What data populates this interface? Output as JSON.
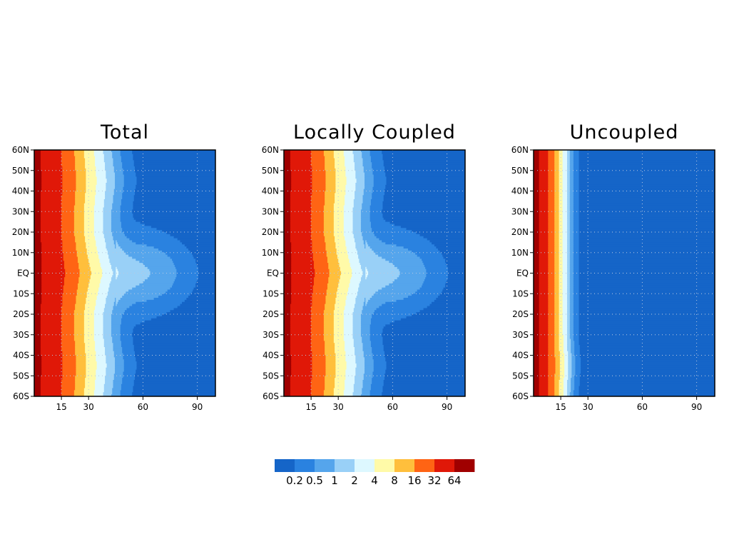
{
  "chart_data": {
    "type": "heatmap",
    "panels": [
      {
        "title": "Total",
        "profile": [
          80,
          52,
          40,
          27,
          16,
          8.4,
          4.5,
          2.3,
          1.1,
          0.45,
          0.17,
          0.14,
          0.12,
          0.1,
          0.08,
          0.06
        ]
      },
      {
        "title": "Locally Coupled",
        "profile": [
          80,
          52,
          40,
          27,
          16,
          8.4,
          4.5,
          2.3,
          1.1,
          0.45,
          0.17,
          0.14,
          0.12,
          0.1,
          0.08,
          0.06
        ]
      },
      {
        "title": "Uncoupled",
        "profile": [
          90,
          38,
          14,
          3.2,
          0.5,
          0.1,
          0.08,
          0.06,
          0.05,
          0.04,
          0.03,
          0.03,
          0.02,
          0.02,
          0.01,
          0.01
        ]
      }
    ],
    "profile_x": [
      0,
      7,
      12,
      17,
      22,
      27,
      32,
      37,
      42,
      48,
      55,
      62,
      70,
      80,
      90,
      100
    ],
    "width_modulation": {
      "Total": [
        [
          -60,
          1.0
        ],
        [
          -45,
          1.05
        ],
        [
          -30,
          1.0
        ],
        [
          -20,
          1.0
        ],
        [
          -12,
          1.05
        ],
        [
          -5,
          1.1
        ],
        [
          0,
          1.15
        ],
        [
          5,
          1.1
        ],
        [
          12,
          1.05
        ],
        [
          20,
          1.0
        ],
        [
          30,
          1.0
        ],
        [
          45,
          1.05
        ],
        [
          60,
          1.0
        ]
      ],
      "Locally Coupled": [
        [
          -60,
          1.0
        ],
        [
          -45,
          1.05
        ],
        [
          -30,
          1.0
        ],
        [
          -20,
          1.0
        ],
        [
          -12,
          1.05
        ],
        [
          -5,
          1.1
        ],
        [
          0,
          1.15
        ],
        [
          5,
          1.1
        ],
        [
          12,
          1.05
        ],
        [
          20,
          1.0
        ],
        [
          30,
          1.0
        ],
        [
          45,
          1.05
        ],
        [
          60,
          1.0
        ]
      ],
      "Uncoupled": [
        [
          -60,
          1.0
        ],
        [
          -45,
          1.05
        ],
        [
          -30,
          1.0
        ],
        [
          -20,
          1.0
        ],
        [
          -10,
          1.0
        ],
        [
          0,
          1.0
        ],
        [
          10,
          1.0
        ],
        [
          20,
          1.0
        ],
        [
          30,
          1.0
        ],
        [
          45,
          1.0
        ],
        [
          60,
          1.0
        ]
      ]
    },
    "equatorial_bump": {
      "Total": {
        "amp": 1.0,
        "sigma": 10
      },
      "Locally Coupled": {
        "amp": 1.0,
        "sigma": 10
      },
      "Uncoupled": {
        "amp": 0.0,
        "sigma": 10
      }
    },
    "xlim": [
      0,
      100
    ],
    "ylim": [
      -60,
      60
    ],
    "x_ticks": [
      15,
      30,
      60,
      90
    ],
    "x_tick_labels": [
      "15",
      "30",
      "60",
      "90"
    ],
    "y_ticks": [
      60,
      50,
      40,
      30,
      20,
      10,
      0,
      -10,
      -20,
      -30,
      -40,
      -50,
      -60
    ],
    "y_tick_labels": [
      "60N",
      "50N",
      "40N",
      "30N",
      "20N",
      "10N",
      "EQ",
      "10S",
      "20S",
      "30S",
      "40S",
      "50S",
      "60S"
    ],
    "grid": true,
    "colorbar": {
      "levels": [
        0.2,
        0.5,
        1,
        2,
        4,
        8,
        16,
        32,
        64
      ],
      "labels": [
        "0.2",
        "0.5",
        "1",
        "2",
        "4",
        "8",
        "16",
        "32",
        "64"
      ],
      "colors": [
        "#1565c8",
        "#2a82e0",
        "#55a5ec",
        "#99d0f7",
        "#ddf8ff",
        "#fffaa8",
        "#ffbf3c",
        "#ff6414",
        "#e01808",
        "#a00000"
      ],
      "placement": "bottom"
    }
  }
}
